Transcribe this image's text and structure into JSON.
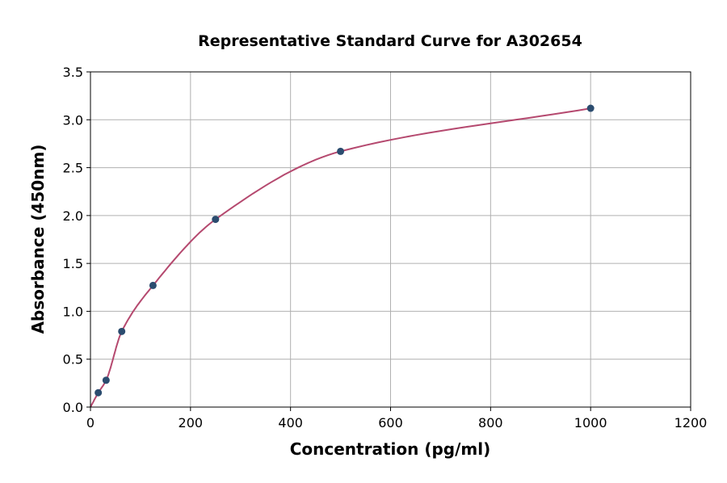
{
  "chart_data": {
    "type": "scatter",
    "title": "Representative Standard Curve for A302654",
    "xlabel": "Concentration (pg/ml)",
    "ylabel": "Absorbance (450nm)",
    "xlim": [
      0,
      1200
    ],
    "ylim": [
      0,
      3.5
    ],
    "xticks": [
      0,
      200,
      400,
      600,
      800,
      1000,
      1200
    ],
    "yticks": [
      "0.0",
      "0.5",
      "1.0",
      "1.5",
      "2.0",
      "2.5",
      "3.0",
      "3.5"
    ],
    "grid": true,
    "points": [
      {
        "x": 15.6,
        "y": 0.15
      },
      {
        "x": 31.25,
        "y": 0.28
      },
      {
        "x": 62.5,
        "y": 0.79
      },
      {
        "x": 125,
        "y": 1.27
      },
      {
        "x": 250,
        "y": 1.96
      },
      {
        "x": 500,
        "y": 2.67
      },
      {
        "x": 1000,
        "y": 3.12
      }
    ],
    "fit_curve": "smooth fitted curve through the standards",
    "colors": {
      "points": "#2b4c6f",
      "curve": "#b5496f",
      "grid": "#b0b0b0"
    }
  }
}
